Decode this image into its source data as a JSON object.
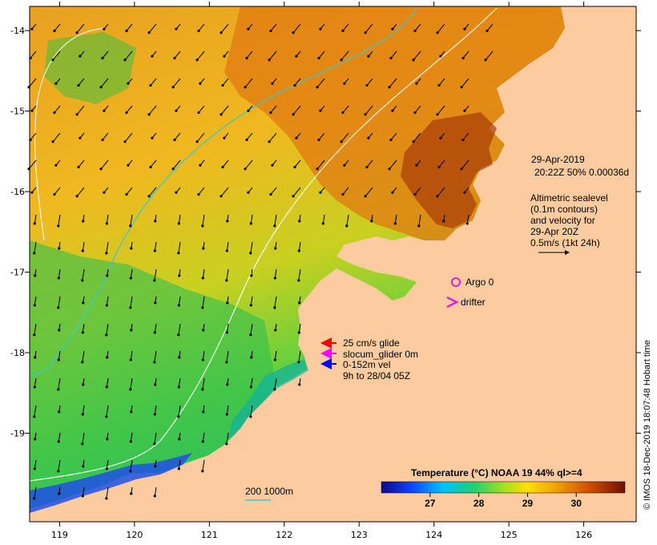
{
  "map": {
    "lon_ticks": [
      "119",
      "120",
      "121",
      "122",
      "123",
      "124",
      "125",
      "126"
    ],
    "lat_ticks": [
      "-14",
      "-15",
      "-16",
      "-17",
      "-18",
      "-19"
    ],
    "lon_range": [
      118.6,
      126.7
    ],
    "lat_range": [
      -20.1,
      -13.7
    ]
  },
  "info": {
    "date": "29-Apr-2019",
    "time_line": "20:22Z  50% 0.00036d",
    "altimetry_lines": [
      "Altimetric sealevel",
      "(0.1m contours)",
      "and velocity for",
      "29-Apr 20Z",
      "0.5m/s (1kt 24h)"
    ]
  },
  "markers": {
    "argo_label": "Argo 0",
    "drifter_label": "drifter",
    "argo_color": "#e020e0",
    "drifter_color": "#e020e0"
  },
  "glider_legend": {
    "items": [
      {
        "label": "25 cm/s glide",
        "color": "#ff0000"
      },
      {
        "label": "slocum_glider 0m",
        "color": "#ff00ff"
      },
      {
        "label": "0-152m vel",
        "color": "#0000ff"
      }
    ],
    "note": "9h to 28/04 05Z"
  },
  "bathymetry": {
    "label": "200  1000m",
    "color_200": "#40c8c8",
    "color_1000": "#ffffff"
  },
  "colorbar": {
    "title": "Temperature (°C) NOAA 19 44% ql>=4",
    "ticks": [
      "27",
      "28",
      "29",
      "30"
    ],
    "range": [
      26.0,
      31.0
    ]
  },
  "credit": "© IMOS 18-Dec-2019 18:07:48 Hobart time",
  "colors": {
    "land": "#fccca0",
    "warm": "#e88a10",
    "cool": "#30c040",
    "cold": "#1040e0"
  }
}
